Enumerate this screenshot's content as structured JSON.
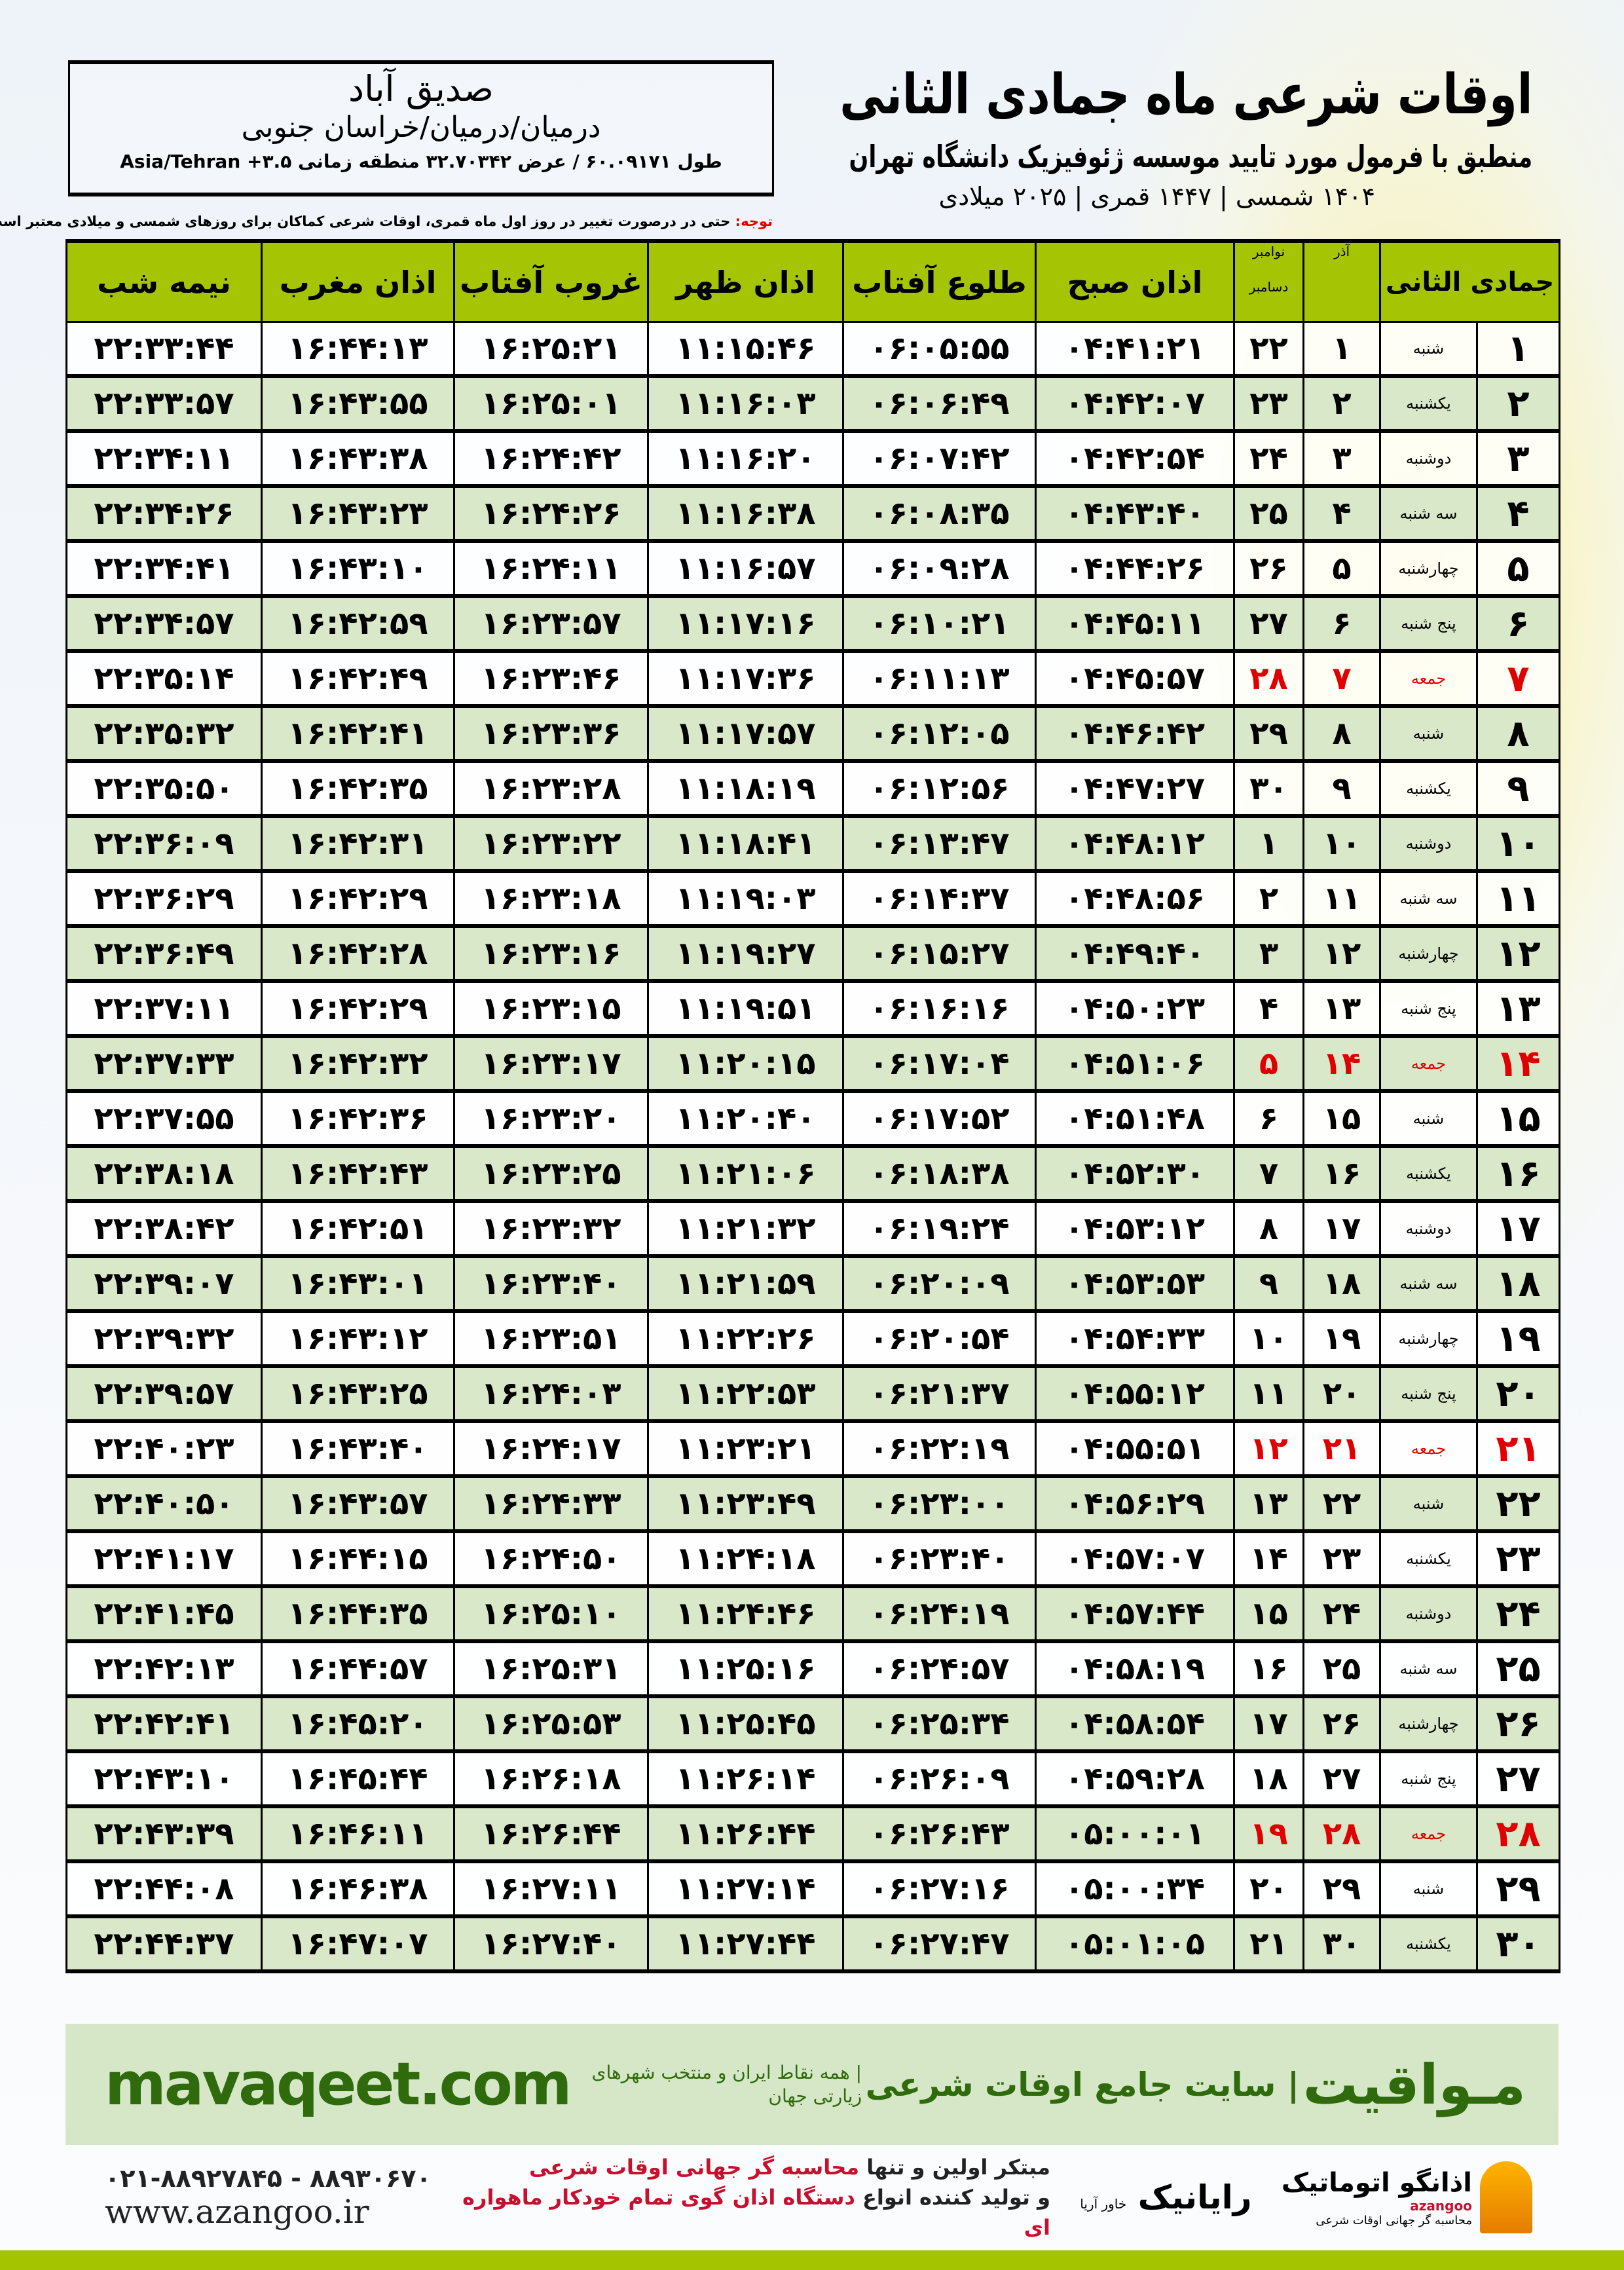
{
  "header": {
    "title": "اوقات شرعی ماه جمادی الثانی",
    "subtitle": "منطبق با فرمول مورد تایید موسسه ژئوفیزیک دانشگاه تهران",
    "dates": "۱۴۰۴ شمسی | ۱۴۴۷ قمری | ۲۰۲۵ میلادی"
  },
  "location": {
    "city": "صدیق آباد",
    "region": "درمیان/درمیان/خراسان جنوبی",
    "coords": "طول ۶۰.۰۹۱۷۱ / عرض ۳۲.۷۰۳۴۲ منطقه زمانی ۳.۵+ Asia/Tehran"
  },
  "note": {
    "label": "توجه:",
    "text": " حتی در درصورت تغییر در روز اول ماه قمری، اوقات شرعی کماکان برای روزهای شمسی و میلادی معتبر است."
  },
  "table": {
    "headers": {
      "hijri": "جمادی الثانی",
      "azar": "آذر",
      "greg": "نوامبر",
      "greg2": "دسامبر",
      "fajr": "اذان صبح",
      "sunrise": "طلوع آفتاب",
      "dhuhr": "اذان ظهر",
      "sunset": "غروب آفتاب",
      "maghrib": "اذان مغرب",
      "midnight": "نیمه شب"
    },
    "holiday_color": "#e00000",
    "rows": [
      [
        "۱",
        "شنبه",
        "۱",
        "۲۲",
        "۰۴:۴۱:۲۱",
        "۰۶:۰۵:۵۵",
        "۱۱:۱۵:۴۶",
        "۱۶:۲۵:۲۱",
        "۱۶:۴۴:۱۳",
        "۲۲:۳۳:۴۴"
      ],
      [
        "۲",
        "یکشنبه",
        "۲",
        "۲۳",
        "۰۴:۴۲:۰۷",
        "۰۶:۰۶:۴۹",
        "۱۱:۱۶:۰۳",
        "۱۶:۲۵:۰۱",
        "۱۶:۴۳:۵۵",
        "۲۲:۳۳:۵۷"
      ],
      [
        "۳",
        "دوشنبه",
        "۳",
        "۲۴",
        "۰۴:۴۲:۵۴",
        "۰۶:۰۷:۴۲",
        "۱۱:۱۶:۲۰",
        "۱۶:۲۴:۴۲",
        "۱۶:۴۳:۳۸",
        "۲۲:۳۴:۱۱"
      ],
      [
        "۴",
        "سه شنبه",
        "۴",
        "۲۵",
        "۰۴:۴۳:۴۰",
        "۰۶:۰۸:۳۵",
        "۱۱:۱۶:۳۸",
        "۱۶:۲۴:۲۶",
        "۱۶:۴۳:۲۳",
        "۲۲:۳۴:۲۶"
      ],
      [
        "۵",
        "چهارشنبه",
        "۵",
        "۲۶",
        "۰۴:۴۴:۲۶",
        "۰۶:۰۹:۲۸",
        "۱۱:۱۶:۵۷",
        "۱۶:۲۴:۱۱",
        "۱۶:۴۳:۱۰",
        "۲۲:۳۴:۴۱"
      ],
      [
        "۶",
        "پنج شنبه",
        "۶",
        "۲۷",
        "۰۴:۴۵:۱۱",
        "۰۶:۱۰:۲۱",
        "۱۱:۱۷:۱۶",
        "۱۶:۲۳:۵۷",
        "۱۶:۴۲:۵۹",
        "۲۲:۳۴:۵۷"
      ],
      [
        "۷",
        "جمعه",
        "۷",
        "۲۸",
        "۰۴:۴۵:۵۷",
        "۰۶:۱۱:۱۳",
        "۱۱:۱۷:۳۶",
        "۱۶:۲۳:۴۶",
        "۱۶:۴۲:۴۹",
        "۲۲:۳۵:۱۴"
      ],
      [
        "۸",
        "شنبه",
        "۸",
        "۲۹",
        "۰۴:۴۶:۴۲",
        "۰۶:۱۲:۰۵",
        "۱۱:۱۷:۵۷",
        "۱۶:۲۳:۳۶",
        "۱۶:۴۲:۴۱",
        "۲۲:۳۵:۳۲"
      ],
      [
        "۹",
        "یکشنبه",
        "۹",
        "۳۰",
        "۰۴:۴۷:۲۷",
        "۰۶:۱۲:۵۶",
        "۱۱:۱۸:۱۹",
        "۱۶:۲۳:۲۸",
        "۱۶:۴۲:۳۵",
        "۲۲:۳۵:۵۰"
      ],
      [
        "۱۰",
        "دوشنبه",
        "۱۰",
        "۱",
        "۰۴:۴۸:۱۲",
        "۰۶:۱۳:۴۷",
        "۱۱:۱۸:۴۱",
        "۱۶:۲۳:۲۲",
        "۱۶:۴۲:۳۱",
        "۲۲:۳۶:۰۹"
      ],
      [
        "۱۱",
        "سه شنبه",
        "۱۱",
        "۲",
        "۰۴:۴۸:۵۶",
        "۰۶:۱۴:۳۷",
        "۱۱:۱۹:۰۳",
        "۱۶:۲۳:۱۸",
        "۱۶:۴۲:۲۹",
        "۲۲:۳۶:۲۹"
      ],
      [
        "۱۲",
        "چهارشنبه",
        "۱۲",
        "۳",
        "۰۴:۴۹:۴۰",
        "۰۶:۱۵:۲۷",
        "۱۱:۱۹:۲۷",
        "۱۶:۲۳:۱۶",
        "۱۶:۴۲:۲۸",
        "۲۲:۳۶:۴۹"
      ],
      [
        "۱۳",
        "پنج شنبه",
        "۱۳",
        "۴",
        "۰۴:۵۰:۲۳",
        "۰۶:۱۶:۱۶",
        "۱۱:۱۹:۵۱",
        "۱۶:۲۳:۱۵",
        "۱۶:۴۲:۲۹",
        "۲۲:۳۷:۱۱"
      ],
      [
        "۱۴",
        "جمعه",
        "۱۴",
        "۵",
        "۰۴:۵۱:۰۶",
        "۰۶:۱۷:۰۴",
        "۱۱:۲۰:۱۵",
        "۱۶:۲۳:۱۷",
        "۱۶:۴۲:۳۲",
        "۲۲:۳۷:۳۳"
      ],
      [
        "۱۵",
        "شنبه",
        "۱۵",
        "۶",
        "۰۴:۵۱:۴۸",
        "۰۶:۱۷:۵۲",
        "۱۱:۲۰:۴۰",
        "۱۶:۲۳:۲۰",
        "۱۶:۴۲:۳۶",
        "۲۲:۳۷:۵۵"
      ],
      [
        "۱۶",
        "یکشنبه",
        "۱۶",
        "۷",
        "۰۴:۵۲:۳۰",
        "۰۶:۱۸:۳۸",
        "۱۱:۲۱:۰۶",
        "۱۶:۲۳:۲۵",
        "۱۶:۴۲:۴۳",
        "۲۲:۳۸:۱۸"
      ],
      [
        "۱۷",
        "دوشنبه",
        "۱۷",
        "۸",
        "۰۴:۵۳:۱۲",
        "۰۶:۱۹:۲۴",
        "۱۱:۲۱:۳۲",
        "۱۶:۲۳:۳۲",
        "۱۶:۴۲:۵۱",
        "۲۲:۳۸:۴۲"
      ],
      [
        "۱۸",
        "سه شنبه",
        "۱۸",
        "۹",
        "۰۴:۵۳:۵۳",
        "۰۶:۲۰:۰۹",
        "۱۱:۲۱:۵۹",
        "۱۶:۲۳:۴۰",
        "۱۶:۴۳:۰۱",
        "۲۲:۳۹:۰۷"
      ],
      [
        "۱۹",
        "چهارشنبه",
        "۱۹",
        "۱۰",
        "۰۴:۵۴:۳۳",
        "۰۶:۲۰:۵۴",
        "۱۱:۲۲:۲۶",
        "۱۶:۲۳:۵۱",
        "۱۶:۴۳:۱۲",
        "۲۲:۳۹:۳۲"
      ],
      [
        "۲۰",
        "پنج شنبه",
        "۲۰",
        "۱۱",
        "۰۴:۵۵:۱۲",
        "۰۶:۲۱:۳۷",
        "۱۱:۲۲:۵۳",
        "۱۶:۲۴:۰۳",
        "۱۶:۴۳:۲۵",
        "۲۲:۳۹:۵۷"
      ],
      [
        "۲۱",
        "جمعه",
        "۲۱",
        "۱۲",
        "۰۴:۵۵:۵۱",
        "۰۶:۲۲:۱۹",
        "۱۱:۲۳:۲۱",
        "۱۶:۲۴:۱۷",
        "۱۶:۴۳:۴۰",
        "۲۲:۴۰:۲۳"
      ],
      [
        "۲۲",
        "شنبه",
        "۲۲",
        "۱۳",
        "۰۴:۵۶:۲۹",
        "۰۶:۲۳:۰۰",
        "۱۱:۲۳:۴۹",
        "۱۶:۲۴:۳۳",
        "۱۶:۴۳:۵۷",
        "۲۲:۴۰:۵۰"
      ],
      [
        "۲۳",
        "یکشنبه",
        "۲۳",
        "۱۴",
        "۰۴:۵۷:۰۷",
        "۰۶:۲۳:۴۰",
        "۱۱:۲۴:۱۸",
        "۱۶:۲۴:۵۰",
        "۱۶:۴۴:۱۵",
        "۲۲:۴۱:۱۷"
      ],
      [
        "۲۴",
        "دوشنبه",
        "۲۴",
        "۱۵",
        "۰۴:۵۷:۴۴",
        "۰۶:۲۴:۱۹",
        "۱۱:۲۴:۴۶",
        "۱۶:۲۵:۱۰",
        "۱۶:۴۴:۳۵",
        "۲۲:۴۱:۴۵"
      ],
      [
        "۲۵",
        "سه شنبه",
        "۲۵",
        "۱۶",
        "۰۴:۵۸:۱۹",
        "۰۶:۲۴:۵۷",
        "۱۱:۲۵:۱۶",
        "۱۶:۲۵:۳۱",
        "۱۶:۴۴:۵۷",
        "۲۲:۴۲:۱۳"
      ],
      [
        "۲۶",
        "چهارشنبه",
        "۲۶",
        "۱۷",
        "۰۴:۵۸:۵۴",
        "۰۶:۲۵:۳۴",
        "۱۱:۲۵:۴۵",
        "۱۶:۲۵:۵۳",
        "۱۶:۴۵:۲۰",
        "۲۲:۴۲:۴۱"
      ],
      [
        "۲۷",
        "پنج شنبه",
        "۲۷",
        "۱۸",
        "۰۴:۵۹:۲۸",
        "۰۶:۲۶:۰۹",
        "۱۱:۲۶:۱۴",
        "۱۶:۲۶:۱۸",
        "۱۶:۴۵:۴۴",
        "۲۲:۴۳:۱۰"
      ],
      [
        "۲۸",
        "جمعه",
        "۲۸",
        "۱۹",
        "۰۵:۰۰:۰۱",
        "۰۶:۲۶:۴۳",
        "۱۱:۲۶:۴۴",
        "۱۶:۲۶:۴۴",
        "۱۶:۴۶:۱۱",
        "۲۲:۴۳:۳۹"
      ],
      [
        "۲۹",
        "شنبه",
        "۲۹",
        "۲۰",
        "۰۵:۰۰:۳۴",
        "۰۶:۲۷:۱۶",
        "۱۱:۲۷:۱۴",
        "۱۶:۲۷:۱۱",
        "۱۶:۴۶:۳۸",
        "۲۲:۴۴:۰۸"
      ],
      [
        "۳۰",
        "یکشنبه",
        "۳۰",
        "۲۱",
        "۰۵:۰۱:۰۵",
        "۰۶:۲۷:۴۷",
        "۱۱:۲۷:۴۴",
        "۱۶:۲۷:۴۰",
        "۱۶:۴۷:۰۷",
        "۲۲:۴۴:۳۷"
      ]
    ]
  },
  "footer": {
    "brand": "مـواقیت",
    "slogan": "| سایت جامع اوقات شرعی",
    "slogan2": "| همه نقاط ایران و منتخب شهرهای زیارتی جهان",
    "site": "mavaqeet.com",
    "promo_line1_a": "مبتکر اولین و تنها ",
    "promo_line1_b": "محاسبه گر جهانی اوقات شرعی",
    "promo_line2_a": "و تولید کننده انواع ",
    "promo_line2_b": "دستگاه اذان گوی تمام خودکار ماهواره ای",
    "phones": "۰۲۱-۸۸۹۲۷۸۴۵ - ۸۸۹۳۰۶۷۰",
    "web": "www.azangoo.ir",
    "logo_rayanik": "رایانیک",
    "logo_rayanik_sub": "خاور آریا",
    "logo_azangoo": "اذانگو اتوماتیک",
    "logo_azangoo_en": "azangoo",
    "logo_azangoo_sub": "محاسبه گر جهانی اوقات شرعی"
  }
}
